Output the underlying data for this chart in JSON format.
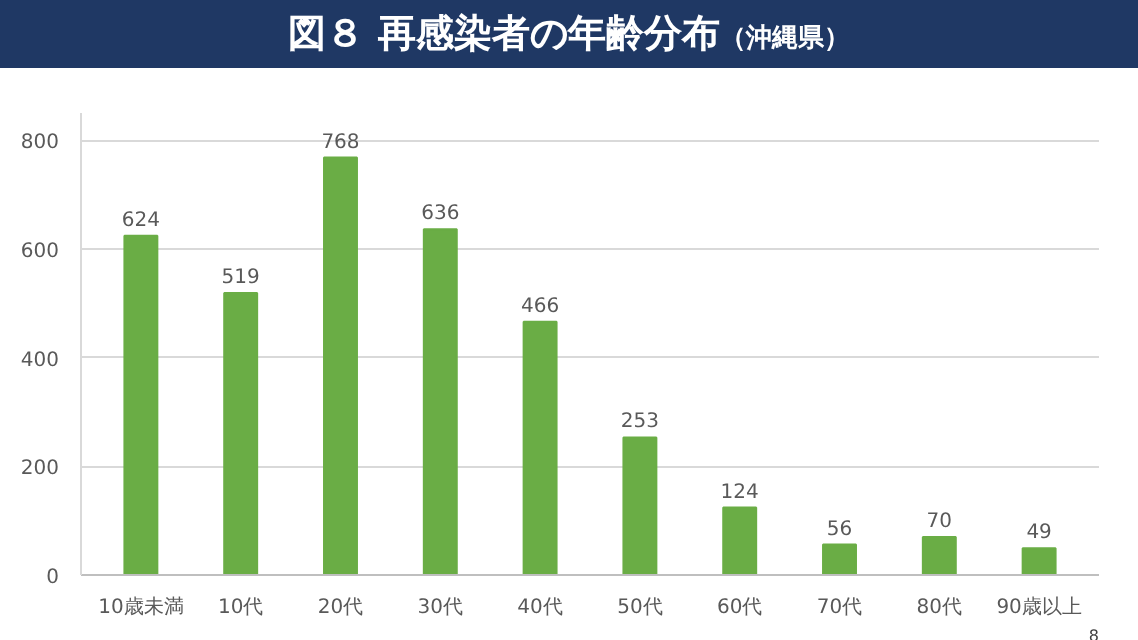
{
  "chart_data": {
    "type": "bar",
    "title": "図８ 再感染者の年齢分布",
    "subtitle": "（沖縄県）",
    "categories": [
      "10歳未満",
      "10代",
      "20代",
      "30代",
      "40代",
      "50代",
      "60代",
      "70代",
      "80代",
      "90歳以上"
    ],
    "values": [
      624,
      519,
      768,
      636,
      466,
      253,
      124,
      56,
      70,
      49
    ],
    "color": "#6aad45",
    "ylim": [
      0,
      850
    ],
    "yticks": [
      0,
      200,
      400,
      600,
      800
    ],
    "grid": "y",
    "data_labels": true,
    "annotations": [
      "8"
    ]
  }
}
